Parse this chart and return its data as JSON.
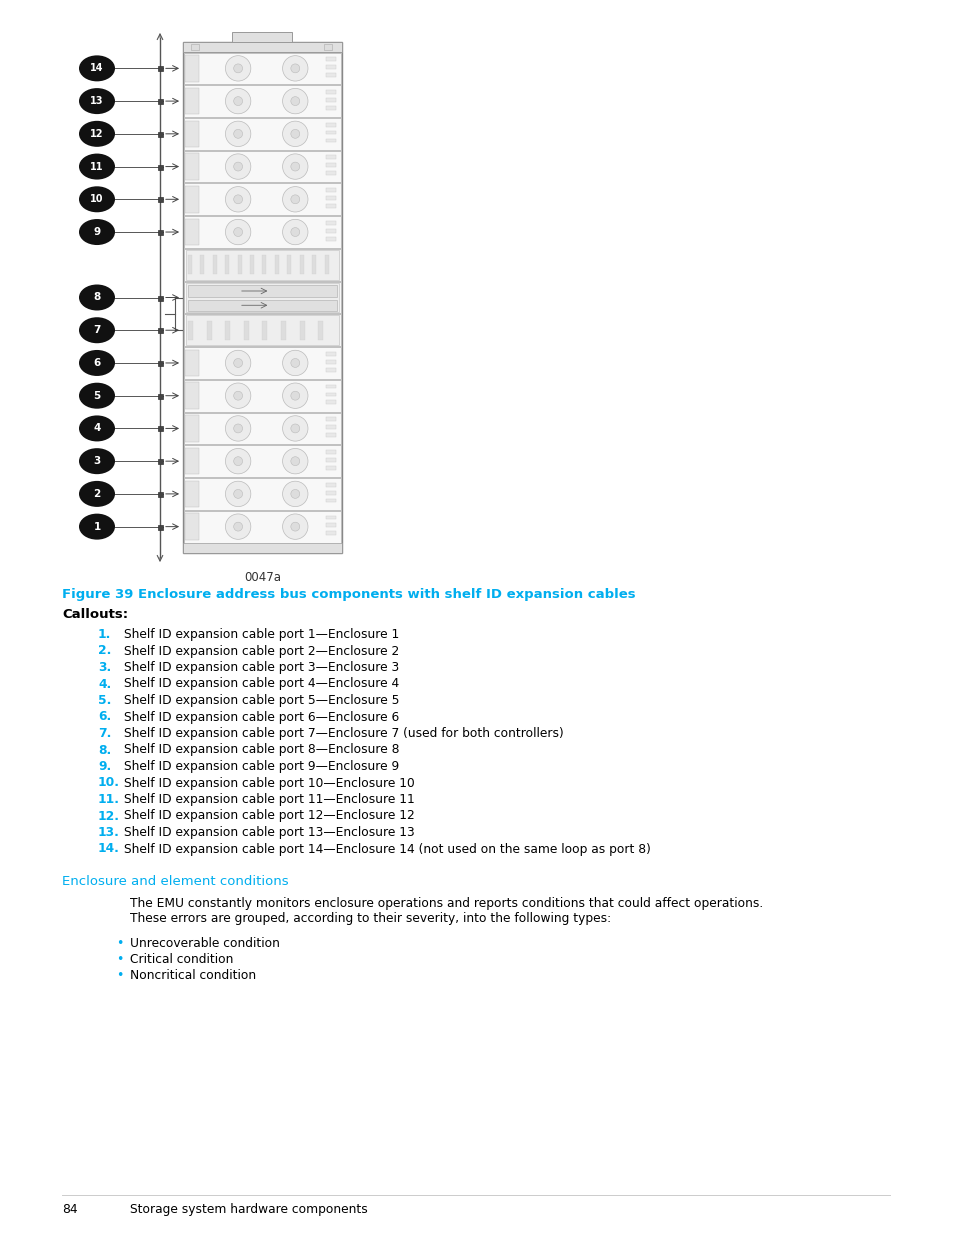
{
  "figure_caption_color": "#00AEEF",
  "figure_caption": "Figure 39 Enclosure address bus components with shelf ID expansion cables",
  "callouts_label": "Callouts:",
  "callout_color": "#00AEEF",
  "callout_items": [
    {
      "num": "1.",
      "text": "Shelf ID expansion cable port 1—Enclosure 1"
    },
    {
      "num": "2.",
      "text": "Shelf ID expansion cable port 2—Enclosure 2"
    },
    {
      "num": "3.",
      "text": "Shelf ID expansion cable port 3—Enclosure 3"
    },
    {
      "num": "4.",
      "text": "Shelf ID expansion cable port 4—Enclosure 4"
    },
    {
      "num": "5.",
      "text": "Shelf ID expansion cable port 5—Enclosure 5"
    },
    {
      "num": "6.",
      "text": "Shelf ID expansion cable port 6—Enclosure 6"
    },
    {
      "num": "7.",
      "text": "Shelf ID expansion cable port 7—Enclosure 7 (used for both controllers)"
    },
    {
      "num": "8.",
      "text": "Shelf ID expansion cable port 8—Enclosure 8"
    },
    {
      "num": "9.",
      "text": "Shelf ID expansion cable port 9—Enclosure 9"
    },
    {
      "num": "10.",
      "text": "Shelf ID expansion cable port 10—Enclosure 10"
    },
    {
      "num": "11.",
      "text": "Shelf ID expansion cable port 11—Enclosure 11"
    },
    {
      "num": "12.",
      "text": "Shelf ID expansion cable port 12—Enclosure 12"
    },
    {
      "num": "13.",
      "text": "Shelf ID expansion cable port 13—Enclosure 13"
    },
    {
      "num": "14.",
      "text": "Shelf ID expansion cable port 14—Enclosure 14 (not used on the same loop as port 8)"
    }
  ],
  "section_title": "Enclosure and element conditions",
  "section_color": "#00AEEF",
  "paragraph_lines": [
    "The EMU constantly monitors enclosure operations and reports conditions that could affect operations.",
    "These errors are grouped, according to their severity, into the following types:"
  ],
  "bullet_items": [
    "Unrecoverable condition",
    "Critical condition",
    "Noncritical condition"
  ],
  "footer_page": "84",
  "footer_text": "Storage system hardware components",
  "image_label": "0047a",
  "bg_color": "#FFFFFF",
  "text_color": "#000000"
}
